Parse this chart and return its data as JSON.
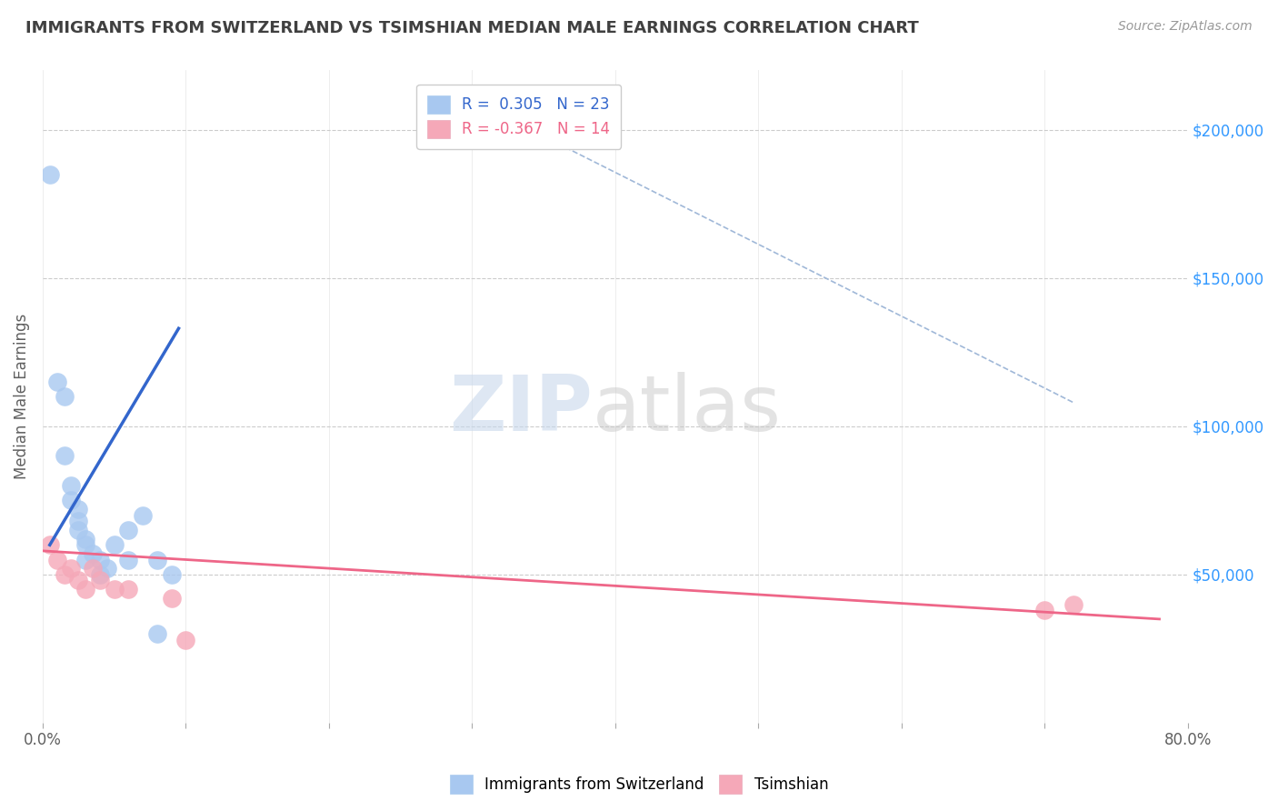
{
  "title": "IMMIGRANTS FROM SWITZERLAND VS TSIMSHIAN MEDIAN MALE EARNINGS CORRELATION CHART",
  "source_text": "Source: ZipAtlas.com",
  "ylabel": "Median Male Earnings",
  "xlim": [
    0.0,
    0.8
  ],
  "ylim": [
    0,
    220000
  ],
  "xtick_values": [
    0.0,
    0.1,
    0.2,
    0.3,
    0.4,
    0.5,
    0.6,
    0.7,
    0.8
  ],
  "xtick_label_left": "0.0%",
  "xtick_label_right": "80.0%",
  "right_ytick_labels": [
    "$50,000",
    "$100,000",
    "$150,000",
    "$200,000"
  ],
  "right_ytick_values": [
    50000,
    100000,
    150000,
    200000
  ],
  "grid_ytick_values": [
    50000,
    100000,
    150000,
    200000
  ],
  "blue_R": "0.305",
  "blue_N": "23",
  "pink_R": "-0.367",
  "pink_N": "14",
  "blue_color": "#a8c8f0",
  "pink_color": "#f5a8b8",
  "blue_line_color": "#3366cc",
  "pink_line_color": "#ee6688",
  "blue_scatter_x": [
    0.005,
    0.01,
    0.015,
    0.015,
    0.02,
    0.02,
    0.025,
    0.025,
    0.025,
    0.03,
    0.03,
    0.03,
    0.035,
    0.04,
    0.04,
    0.045,
    0.05,
    0.06,
    0.06,
    0.07,
    0.08,
    0.08,
    0.09
  ],
  "blue_scatter_y": [
    185000,
    115000,
    110000,
    90000,
    75000,
    80000,
    65000,
    72000,
    68000,
    60000,
    55000,
    62000,
    57000,
    50000,
    55000,
    52000,
    60000,
    55000,
    65000,
    70000,
    55000,
    30000,
    50000
  ],
  "pink_scatter_x": [
    0.005,
    0.01,
    0.015,
    0.02,
    0.025,
    0.03,
    0.035,
    0.04,
    0.05,
    0.06,
    0.09,
    0.7,
    0.72,
    0.1
  ],
  "pink_scatter_y": [
    60000,
    55000,
    50000,
    52000,
    48000,
    45000,
    52000,
    48000,
    45000,
    45000,
    42000,
    38000,
    40000,
    28000
  ],
  "blue_line_x": [
    0.005,
    0.095
  ],
  "blue_line_y": [
    60000,
    133000
  ],
  "pink_line_x": [
    0.0,
    0.78
  ],
  "pink_line_y": [
    58000,
    35000
  ],
  "diag_line_x": [
    0.32,
    0.72
  ],
  "diag_line_y": [
    205000,
    108000
  ],
  "watermark_zip": "ZIP",
  "watermark_atlas": "atlas",
  "legend_label_blue": "Immigrants from Switzerland",
  "legend_label_pink": "Tsimshian",
  "background_color": "#ffffff",
  "grid_color": "#cccccc",
  "title_color": "#404040",
  "source_color": "#999999"
}
